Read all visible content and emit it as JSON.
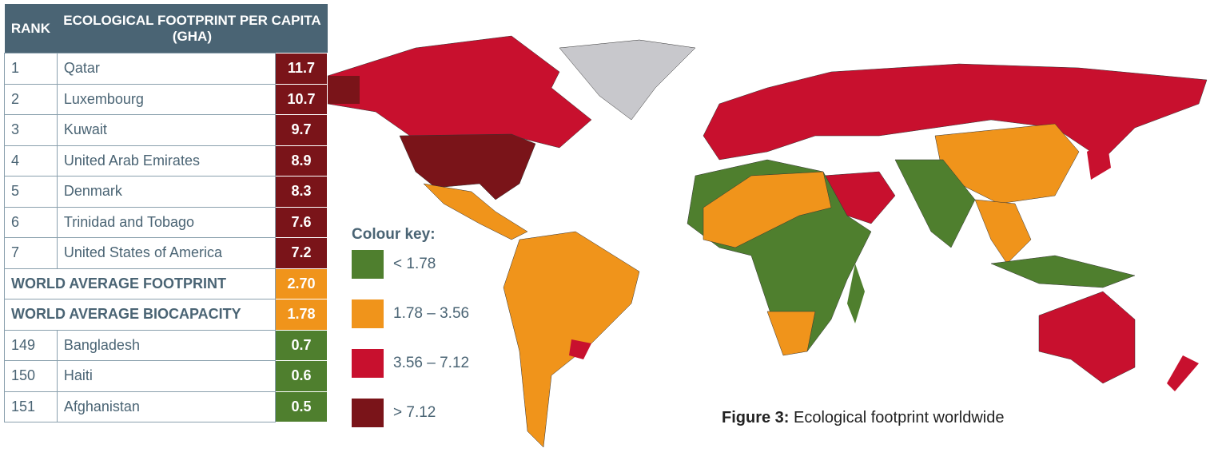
{
  "table": {
    "header": [
      "RANK",
      "ECOLOGICAL FOOTPRINT PER CAPITA (GHA)"
    ],
    "rows": [
      {
        "cells": [
          "1",
          "Qatar",
          "11.7"
        ],
        "color": "#7a1419"
      },
      {
        "cells": [
          "2",
          "Luxembourg",
          "10.7"
        ],
        "color": "#7a1419"
      },
      {
        "cells": [
          "3",
          "Kuwait",
          "9.7"
        ],
        "color": "#7a1419"
      },
      {
        "cells": [
          "4",
          "United Arab Emirates",
          "8.9"
        ],
        "color": "#7a1419"
      },
      {
        "cells": [
          "5",
          "Denmark",
          "8.3"
        ],
        "color": "#7a1419"
      },
      {
        "cells": [
          "6",
          "Trinidad and Tobago",
          "7.6"
        ],
        "color": "#7a1419"
      },
      {
        "cells": [
          "7",
          "United States of America",
          "7.2"
        ],
        "color": "#7a1419"
      },
      {
        "cells": [
          "WORLD AVERAGE FOOTPRINT",
          "2.70"
        ],
        "color": "#f0941b"
      },
      {
        "cells": [
          "WORLD AVERAGE BIOCAPACITY",
          "1.78"
        ],
        "color": "#f0941b"
      },
      {
        "cells": [
          "149",
          "Bangladesh",
          "0.7"
        ],
        "color": "#4f7f2e"
      },
      {
        "cells": [
          "150",
          "Haiti",
          "0.6"
        ],
        "color": "#4f7f2e"
      },
      {
        "cells": [
          "151",
          "Afghanistan",
          "0.5"
        ],
        "color": "#4f7f2e"
      }
    ]
  },
  "legend": {
    "title": "Colour key:",
    "items": [
      {
        "label": "< 1.78",
        "color": "#4f7f2e"
      },
      {
        "label": "1.78 – 3.56",
        "color": "#f0941b"
      },
      {
        "label": "3.56 – 7.12",
        "color": "#c8102e"
      },
      {
        "label": "> 7.12",
        "color": "#7a1419"
      }
    ]
  },
  "caption": {
    "label": "Figure 3:",
    "text": "Ecological footprint worldwide"
  }
}
